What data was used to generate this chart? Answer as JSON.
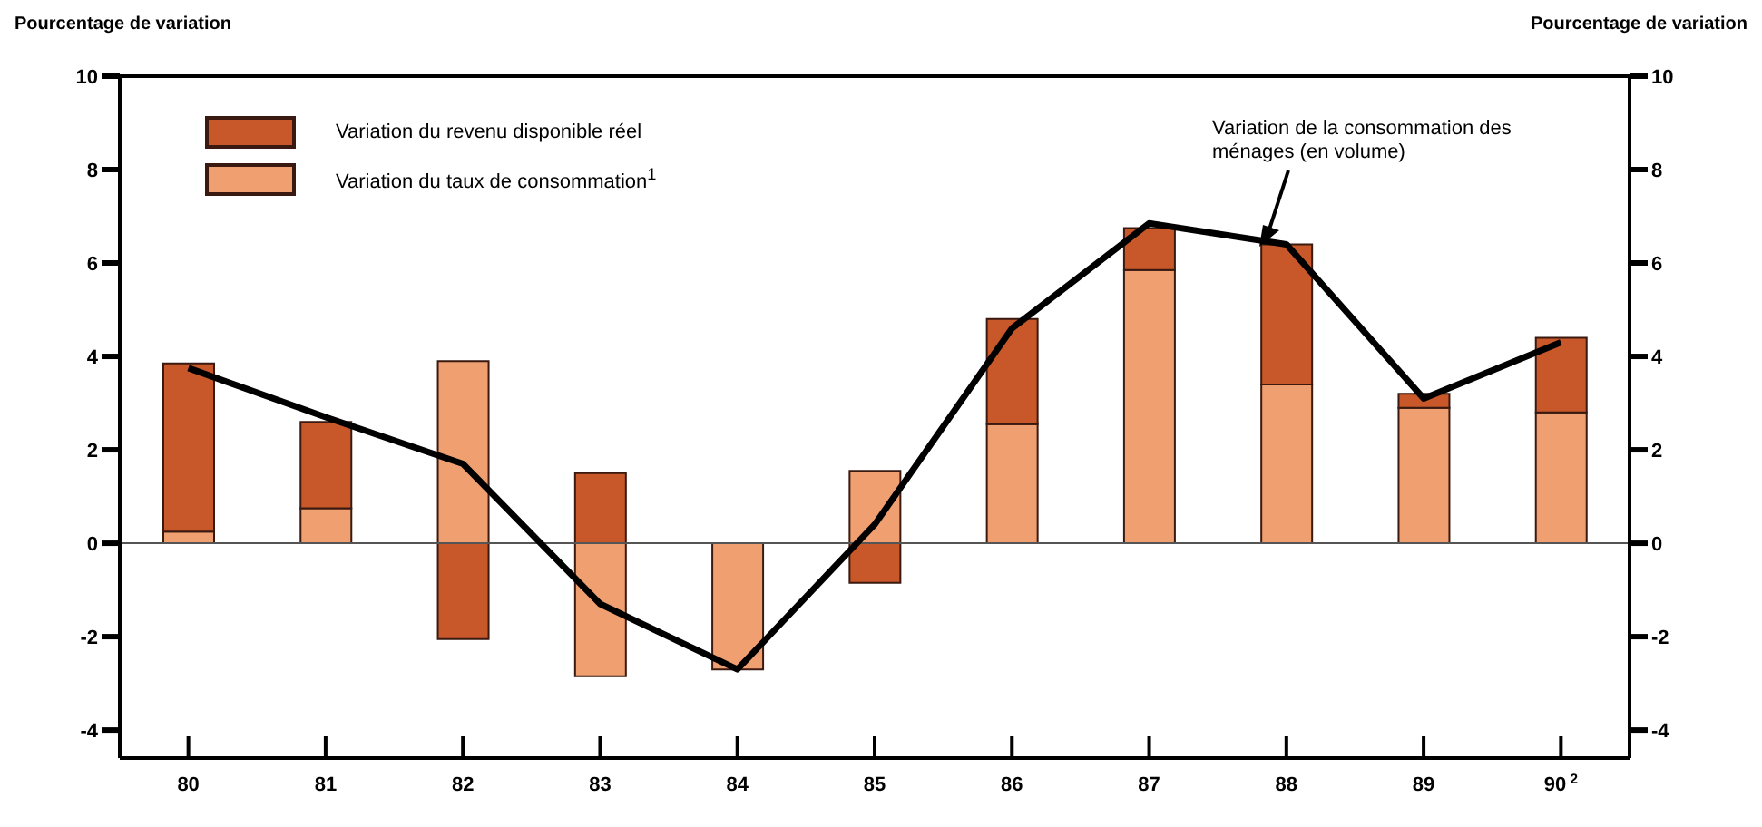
{
  "chart_data": {
    "type": "bar",
    "stacked": true,
    "ylabel": "Pourcentage de variation",
    "y2label": "Pourcentage de variation",
    "categories": [
      "80",
      "81",
      "82",
      "83",
      "84",
      "85",
      "86",
      "87",
      "88",
      "89",
      "90$^{2}$"
    ],
    "series": [
      {
        "name": "Variation du taux de consommation$^{1}$",
        "color": "#f0a070",
        "values": [
          0.25,
          0.75,
          3.9,
          -2.85,
          -2.7,
          1.55,
          2.55,
          5.85,
          3.4,
          2.9,
          2.8
        ]
      },
      {
        "name": "Variation du revenu disponible réel",
        "color": "#c8582a",
        "values": [
          3.6,
          1.85,
          -2.05,
          1.5,
          0,
          -0.85,
          2.25,
          0.9,
          3.0,
          0.3,
          1.6
        ]
      },
      {
        "name": "Variation de la consommation des ménages (en volume)",
        "type": "line",
        "color": "#000000",
        "marker": "none",
        "values": [
          3.75,
          2.7,
          1.7,
          -1.3,
          -2.7,
          0.4,
          4.6,
          6.85,
          6.4,
          3.1,
          4.3
        ]
      }
    ],
    "ylim": [
      -4.6,
      10
    ],
    "yticks": [
      -4,
      -2,
      0,
      2,
      4,
      6,
      8,
      10
    ],
    "y2lim": [
      -4.6,
      10
    ],
    "y2ticks": [
      -4,
      -2,
      0,
      2,
      4,
      6,
      8,
      10
    ],
    "ref_lines": [
      {
        "axis": "y",
        "value": 0,
        "color": "#555555"
      }
    ],
    "legend": "top left"
  }
}
